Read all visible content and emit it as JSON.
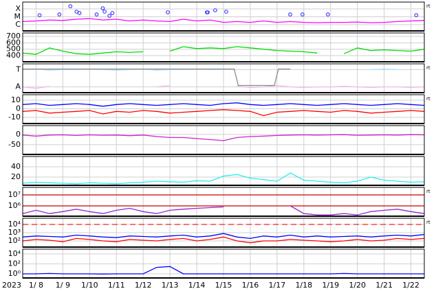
{
  "chart_data": [
    {
      "type": "line",
      "log": true,
      "note": "rt",
      "ylim": [
        1.66e-07,
        0.00074
      ],
      "yticks": [
        {
          "value": 0.0001,
          "label": "X"
        },
        {
          "value": 1e-05,
          "label": "M"
        },
        {
          "value": 1e-06,
          "label": "C"
        }
      ],
      "x": [
        7.5,
        8,
        8.5,
        9,
        9.5,
        10,
        10.5,
        11,
        11.5,
        12,
        12.5,
        13,
        13.5,
        14,
        14.5,
        15,
        15.5,
        16,
        16.5,
        17,
        17.5,
        18,
        18.5,
        19,
        19.5,
        20,
        20.5,
        21,
        21.5,
        22,
        22.5
      ],
      "series": [
        {
          "color": "#ff00ff",
          "values": [
            2.5e-06,
            3e-06,
            4e-06,
            3.5e-06,
            5e-06,
            6e-06,
            4e-06,
            5e-06,
            3e-06,
            4e-06,
            3e-06,
            2.5e-06,
            5e-06,
            3e-06,
            4e-06,
            2e-06,
            2.5e-06,
            2e-06,
            3e-06,
            2e-06,
            2.5e-06,
            2e-06,
            1.8e-06,
            2e-06,
            2e-06,
            2.2e-06,
            1.8e-06,
            2e-06,
            2.5e-06,
            3e-06,
            3.5e-06
          ]
        },
        {
          "mode": "markers",
          "color": "#4040ff",
          "x": [
            8.13,
            8.87,
            9.28,
            9.51,
            9.62,
            10.26,
            10.49,
            10.56,
            10.74,
            10.85,
            12.92,
            14.38,
            14.41,
            14.69,
            15.1,
            17.49,
            17.95,
            18.9,
            22.2
          ],
          "values": [
            1.6e-05,
            2e-05,
            0.00022,
            4.5e-05,
            3e-05,
            2e-05,
            0.00012,
            4.5e-05,
            1.35e-05,
            3e-05,
            3.7e-05,
            3.7e-05,
            3.7e-05,
            6.7e-05,
            4.5e-05,
            2e-05,
            2e-05,
            2e-05,
            1.6e-05
          ]
        }
      ]
    },
    {
      "type": "line",
      "ylim": [
        304,
        754
      ],
      "yticks": [
        400,
        500,
        600,
        700
      ],
      "x": [
        7.5,
        8,
        8.5,
        9,
        9.5,
        10,
        10.5,
        11,
        11.5,
        12,
        12.5,
        13,
        13.5,
        14,
        14.5,
        15,
        15.5,
        16,
        16.5,
        17,
        17.5,
        18,
        18.5,
        19,
        19.5,
        20,
        20.5,
        21,
        21.5,
        22,
        22.5
      ],
      "series": [
        {
          "color": "#00dd00",
          "values": [
            440,
            420,
            520,
            470,
            430,
            420,
            440,
            460,
            450,
            460,
            null,
            470,
            540,
            510,
            520,
            510,
            540,
            520,
            500,
            480,
            470,
            460,
            440,
            null,
            430,
            520,
            480,
            490,
            480,
            470,
            500
          ]
        }
      ]
    },
    {
      "type": "line",
      "note": "rt",
      "ylim": [
        0,
        1
      ],
      "yticks": [
        {
          "value": 0.8,
          "label": "T"
        },
        {
          "value": 0.2,
          "label": "A"
        }
      ],
      "x": [
        7.5,
        8,
        8.5,
        9,
        9.5,
        10,
        10.5,
        11,
        11.5,
        12,
        12.5,
        13,
        13.5,
        14,
        14.5,
        15,
        15.5,
        16,
        16.5,
        17,
        17.5,
        18,
        18.5,
        19,
        19.5,
        20,
        20.5,
        21,
        21.5,
        22,
        22.5
      ],
      "series": [
        {
          "color": "#aadcff",
          "values": [
            0.8,
            0.82,
            0.78,
            0.8,
            0.8,
            0.82,
            0.8,
            0.78,
            0.8,
            0.82,
            0.78,
            0.8,
            0.8,
            0.82,
            0.8,
            0.8,
            null,
            null,
            null,
            null,
            0.82,
            null,
            null,
            null,
            null,
            null,
            0.8,
            0.82,
            0.8,
            null,
            null
          ]
        },
        {
          "color": "#f4b6ee",
          "values": [
            0.2,
            0.15,
            0.22,
            null,
            null,
            null,
            null,
            null,
            null,
            null,
            0.2,
            0.25,
            null,
            null,
            null,
            null,
            0.22,
            0.18,
            0.2,
            0.25,
            0.2,
            0.18,
            0.2,
            0.2,
            0.22,
            0.2,
            0.18,
            0.2,
            0.2,
            0.18,
            0.2
          ]
        },
        {
          "color": "#888888",
          "x": [
            7.5,
            15.4,
            15.55,
            16.9,
            17.05,
            17.5
          ],
          "values": [
            0.82,
            0.82,
            0.25,
            0.25,
            0.82,
            0.82
          ]
        }
      ]
    },
    {
      "type": "line",
      "note": "rt",
      "ylim": [
        -17.2,
        16.4
      ],
      "yticks": [
        10,
        0,
        -10
      ],
      "x": [
        7.5,
        8,
        8.5,
        9,
        9.5,
        10,
        10.5,
        11,
        11.5,
        12,
        12.5,
        13,
        13.5,
        14,
        14.5,
        15,
        15.5,
        16,
        16.5,
        17,
        17.5,
        18,
        18.5,
        19,
        19.5,
        20,
        20.5,
        21,
        21.5,
        22,
        22.5
      ],
      "series": [
        {
          "color": "#0000ff",
          "values": [
            5,
            6,
            4,
            5,
            6,
            5,
            3,
            5,
            6,
            5,
            4,
            5,
            6,
            5,
            4,
            6,
            7,
            5,
            4,
            5,
            6,
            5,
            4,
            5,
            6,
            5,
            4,
            5,
            6,
            5,
            4
          ]
        },
        {
          "color": "#ff0000",
          "values": [
            -3,
            -2,
            -5,
            -4,
            -3,
            -2,
            -6,
            -3,
            -4,
            -2,
            -3,
            -5,
            -4,
            -3,
            -2,
            -1,
            -2,
            -3,
            -8,
            -4,
            -3,
            -2,
            -3,
            -4,
            -2,
            -3,
            -5,
            -4,
            -3,
            -2,
            -3
          ]
        }
      ]
    },
    {
      "type": "line",
      "ylim": [
        -97,
        43
      ],
      "yticks": [
        0,
        -50
      ],
      "x": [
        7.5,
        8,
        8.5,
        9,
        9.5,
        10,
        10.5,
        11,
        11.5,
        12,
        12.5,
        13,
        13.5,
        14,
        14.5,
        15,
        15.5,
        16,
        16.5,
        17,
        17.5,
        18,
        18.5,
        19,
        19.5,
        20,
        20.5,
        21,
        21.5,
        22,
        22.5
      ],
      "series": [
        {
          "color": "#cc22cc",
          "values": [
            -3,
            -8,
            -3,
            -2,
            -5,
            -2,
            -4,
            -3,
            -6,
            -3,
            -10,
            -15,
            -15,
            -20,
            -25,
            -30,
            -15,
            -10,
            -8,
            -5,
            -3,
            -2,
            -3,
            -2,
            -1,
            -4,
            -3,
            -2,
            -3,
            -1,
            -2
          ]
        }
      ]
    },
    {
      "type": "line",
      "ylim": [
        4,
        60
      ],
      "yticks": [
        20,
        40
      ],
      "x": [
        7.5,
        8,
        8.5,
        9,
        9.5,
        10,
        10.5,
        11,
        11.5,
        12,
        12.5,
        13,
        13.5,
        14,
        14.5,
        15,
        15.5,
        16,
        16.5,
        17,
        17.5,
        18,
        18.5,
        19,
        19.5,
        20,
        20.5,
        21,
        21.5,
        22,
        22.5
      ],
      "series": [
        {
          "color": "#22eeee",
          "values": [
            8,
            10,
            9,
            8,
            7,
            9,
            8,
            7,
            9,
            10,
            12,
            11,
            10,
            13,
            12,
            22,
            25,
            18,
            15,
            12,
            28,
            14,
            12,
            10,
            9,
            12,
            20,
            14,
            12,
            10,
            11
          ]
        }
      ]
    },
    {
      "type": "line",
      "log": true,
      "note": "rt",
      "ylim": [
        115000.0,
        49000000.0
      ],
      "yticks": [
        {
          "value": 1000000.0,
          "label": "10⁶"
        },
        {
          "value": 10000000.0,
          "label": "10⁷"
        }
      ],
      "hlines": [
        10000000.0,
        1000000.0
      ],
      "hline_color": "#cc0000",
      "x": [
        7.5,
        8,
        8.5,
        9,
        9.5,
        10,
        10.5,
        11,
        11.5,
        12,
        12.5,
        13,
        13.5,
        14,
        14.5,
        15,
        15.5,
        16,
        16.5,
        17,
        17.5,
        18,
        18.5,
        19,
        19.5,
        20,
        20.5,
        21,
        21.5,
        22,
        22.5
      ],
      "series": [
        {
          "color": "#9922cc",
          "values": [
            200000.0,
            400000.0,
            200000.0,
            300000.0,
            500000.0,
            300000.0,
            200000.0,
            400000.0,
            600000.0,
            300000.0,
            200000.0,
            400000.0,
            500000.0,
            600000.0,
            700000.0,
            800000.0,
            null,
            null,
            null,
            null,
            1000000.0,
            200000.0,
            150000.0,
            150000.0,
            200000.0,
            150000.0,
            300000.0,
            400000.0,
            500000.0,
            300000.0,
            200000.0
          ]
        }
      ]
    },
    {
      "type": "line",
      "log": true,
      "note": "rt",
      "ylim": [
        17.8,
        56000
      ],
      "yticks": [
        {
          "value": 100,
          "label": "10²"
        },
        {
          "value": 1000,
          "label": "10³"
        },
        {
          "value": 10000,
          "label": "10⁴"
        }
      ],
      "hlines": [
        10000
      ],
      "hline_color": "#ee2222",
      "hline_dashed": true,
      "x": [
        7.5,
        8,
        8.5,
        9,
        9.5,
        10,
        10.5,
        11,
        11.5,
        12,
        12.5,
        13,
        13.5,
        14,
        14.5,
        15,
        15.5,
        16,
        16.5,
        17,
        17.5,
        18,
        18.5,
        19,
        19.5,
        20,
        20.5,
        21,
        21.5,
        22,
        22.5
      ],
      "series": [
        {
          "color": "#0000ff",
          "values": [
            300,
            400,
            350,
            300,
            500,
            400,
            300,
            250,
            400,
            350,
            300,
            400,
            500,
            300,
            400,
            800,
            300,
            200,
            400,
            300,
            500,
            300,
            400,
            300,
            350,
            400,
            300,
            400,
            500,
            400,
            600
          ]
        },
        {
          "color": "#ff0000",
          "values": [
            100,
            150,
            120,
            80,
            200,
            150,
            100,
            80,
            150,
            120,
            100,
            150,
            200,
            100,
            150,
            300,
            100,
            60,
            100,
            100,
            150,
            120,
            100,
            80,
            100,
            150,
            100,
            120,
            200,
            150,
            200
          ]
        }
      ]
    },
    {
      "type": "line",
      "log": true,
      "ylim": [
        0.148,
        93300
      ],
      "yticks": [
        {
          "value": 1,
          "label": "10⁰"
        },
        {
          "value": 100,
          "label": "10²"
        },
        {
          "value": 10000,
          "label": "10⁴"
        }
      ],
      "year": "2023",
      "xlim": [
        7.5,
        22.5
      ],
      "xticks": [
        {
          "value": 8,
          "label": "1/ 8"
        },
        {
          "value": 9,
          "label": "1/ 9"
        },
        {
          "value": 10,
          "label": "1/10"
        },
        {
          "value": 11,
          "label": "1/11"
        },
        {
          "value": 12,
          "label": "1/12"
        },
        {
          "value": 13,
          "label": "1/13"
        },
        {
          "value": 14,
          "label": "1/14"
        },
        {
          "value": 15,
          "label": "1/15"
        },
        {
          "value": 16,
          "label": "1/16"
        },
        {
          "value": 17,
          "label": "1/17"
        },
        {
          "value": 18,
          "label": "1/18"
        },
        {
          "value": 19,
          "label": "1/19"
        },
        {
          "value": 20,
          "label": "1/20"
        },
        {
          "value": 21,
          "label": "1/21"
        },
        {
          "value": 22,
          "label": "1/22"
        }
      ],
      "x": [
        7.5,
        8,
        8.5,
        9,
        9.5,
        10,
        10.5,
        11,
        11.5,
        12,
        12.5,
        13,
        13.5,
        14,
        14.5,
        15,
        15.5,
        16,
        16.5,
        17,
        17.5,
        18,
        18.5,
        19,
        19.5,
        20,
        20.5,
        21,
        21.5,
        22,
        22.5
      ],
      "series": [
        {
          "color": "#0000ff",
          "values": [
            1,
            1,
            1.2,
            1,
            1,
            1,
            0.9,
            1,
            1,
            1,
            20,
            30,
            1,
            1,
            1,
            1,
            1,
            1,
            1,
            1,
            1,
            1,
            1,
            1,
            1.2,
            1,
            1,
            1,
            1,
            1,
            1
          ]
        }
      ]
    }
  ]
}
